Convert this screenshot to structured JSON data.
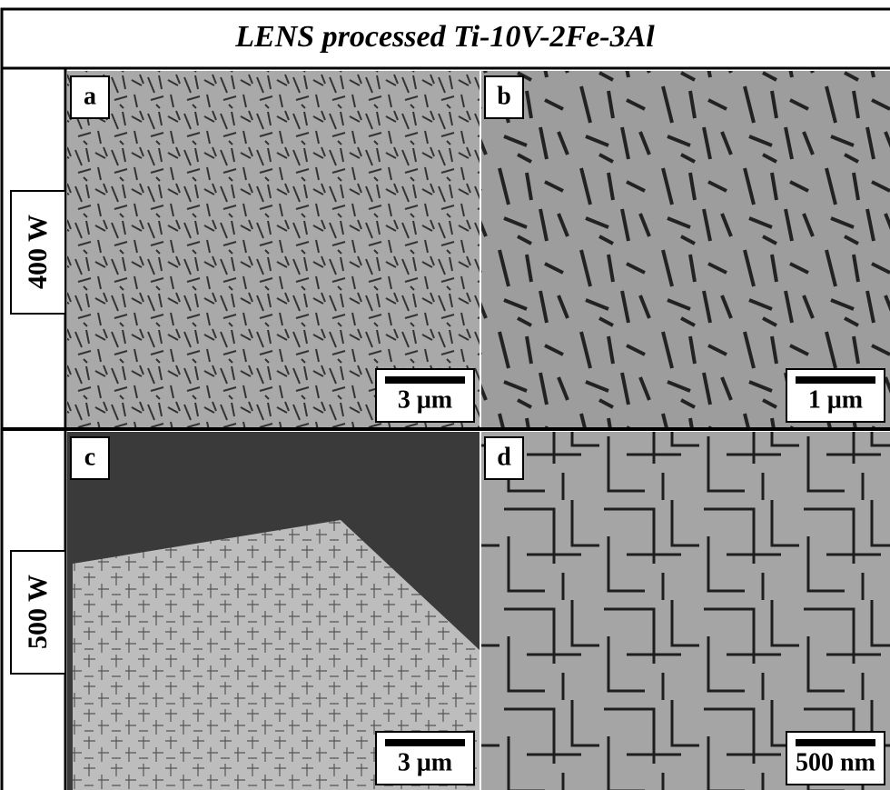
{
  "title": "LENS processed Ti-10V-2Fe-3Al",
  "rows": [
    {
      "label": "400 W"
    },
    {
      "label": "500 W"
    }
  ],
  "panels": [
    {
      "letter": "a",
      "scale_bar": "3 μm"
    },
    {
      "letter": "b",
      "scale_bar": "1 μm"
    },
    {
      "letter": "c",
      "scale_bar": "3 μm"
    },
    {
      "letter": "d",
      "scale_bar": "500 nm"
    }
  ]
}
